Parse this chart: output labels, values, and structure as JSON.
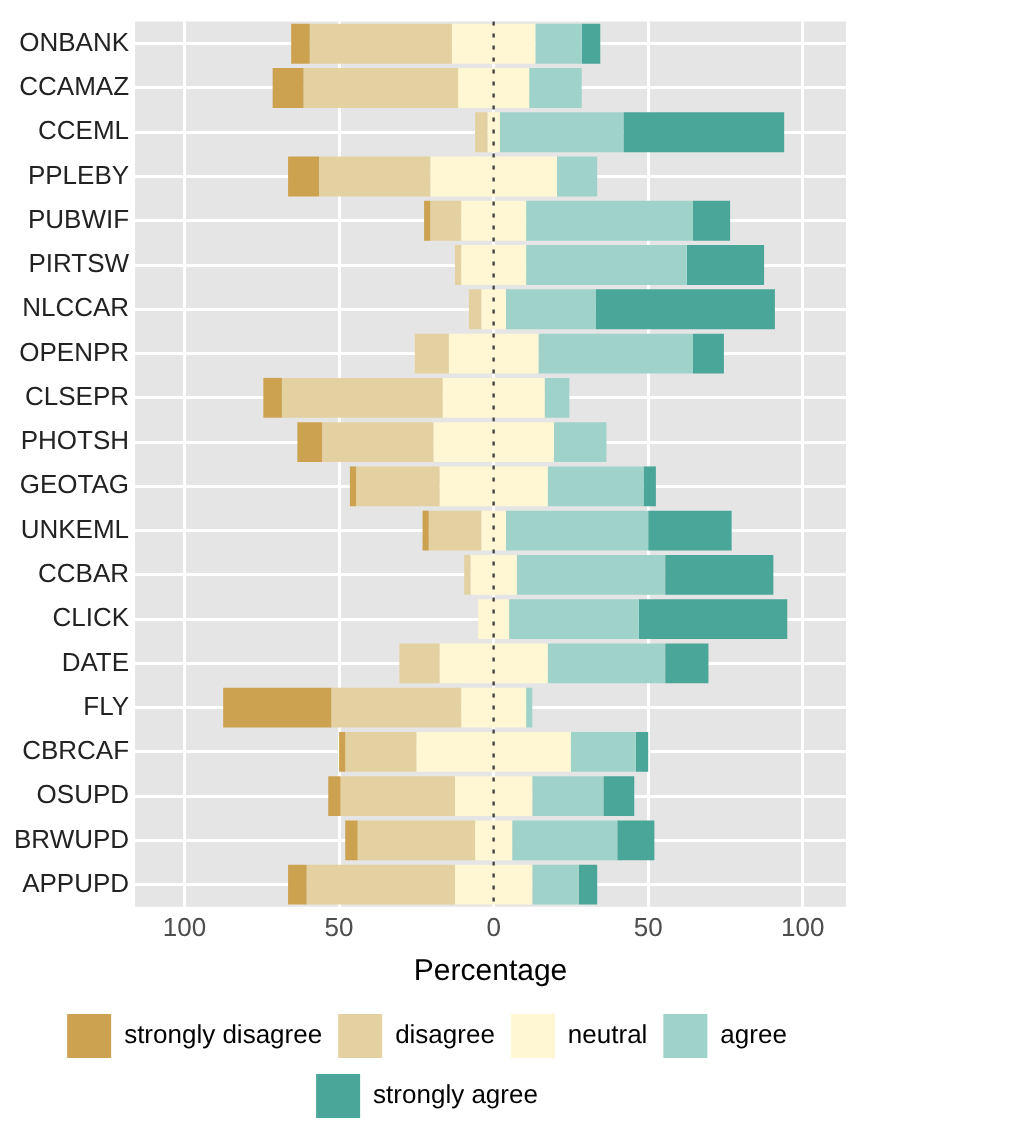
{
  "chart_data": {
    "type": "bar",
    "orientation": "horizontal",
    "xlabel": "Percentage",
    "categories": [
      "ONBANK",
      "CCAMAZ",
      "CCEML",
      "PPLEBY",
      "PUBWIF",
      "PIRTSW",
      "NLCCAR",
      "OPENPR",
      "CLSEPR",
      "PHOTSH",
      "GEOTAG",
      "UNKEML",
      "CCBAR",
      "CLICK",
      "DATE",
      "FLY",
      "CBRCAF",
      "OSUPD",
      "BRWUPD",
      "APPUPD"
    ],
    "series": [
      {
        "name": "strongly disagree",
        "color": "#cca250",
        "values": [
          6,
          10,
          null,
          10,
          2,
          null,
          null,
          null,
          6,
          8,
          2,
          2,
          null,
          null,
          null,
          35,
          2,
          4,
          4,
          6
        ],
        "base": [
          -65.5,
          -71.5,
          null,
          -66.5,
          -22.5,
          null,
          null,
          null,
          -74.5,
          -63.5,
          -46.5,
          -23,
          null,
          null,
          null,
          -87.5,
          -50,
          -53.5,
          -48,
          -66.5
        ]
      },
      {
        "name": "disagree",
        "color": "#e4d1a1",
        "values": [
          46,
          50,
          4,
          36,
          10,
          2,
          4,
          11,
          52,
          36,
          27,
          17,
          2,
          null,
          13,
          42,
          23,
          37,
          38,
          48
        ],
        "base": [
          -59.5,
          -61.5,
          -6,
          -56.5,
          -20.5,
          -12.5,
          -8,
          -25.5,
          -68.5,
          -55.5,
          -44.5,
          -21,
          -9.5,
          null,
          -30.5,
          -52.5,
          -48,
          -49.5,
          -44,
          -60.5
        ]
      },
      {
        "name": "neutral",
        "color": "#fff6d3",
        "values": [
          27,
          23,
          4,
          41,
          21,
          21,
          8,
          29,
          33,
          39,
          35,
          8,
          15,
          10,
          35,
          21,
          50,
          25,
          12,
          25
        ],
        "base": [
          -13.5,
          -11.5,
          -2,
          -20.5,
          -10.5,
          -10.5,
          -4,
          -14.5,
          -16.5,
          -19.5,
          -17.5,
          -4,
          -7.5,
          -5,
          -17.5,
          -10.5,
          -25,
          -12.5,
          -6,
          -12.5
        ]
      },
      {
        "name": "agree",
        "color": "#9fd3c9",
        "values": [
          15,
          17,
          40,
          13,
          54,
          52,
          29,
          50,
          8,
          17,
          31,
          46,
          48,
          42,
          38,
          2,
          21,
          23,
          34,
          15
        ],
        "base": [
          13.5,
          11.5,
          2,
          20.5,
          10.5,
          10.5,
          4,
          14.5,
          16.5,
          19.5,
          17.5,
          4,
          7.5,
          5,
          17.5,
          10.5,
          25,
          12.5,
          6,
          12.5
        ]
      },
      {
        "name": "strongly agree",
        "color": "#4aa698",
        "values": [
          6,
          null,
          52,
          null,
          12,
          25,
          58,
          10,
          null,
          null,
          4,
          27,
          35,
          48,
          14,
          null,
          4,
          10,
          12,
          6
        ],
        "base": [
          28.5,
          null,
          42,
          null,
          64.5,
          62.5,
          33,
          64.5,
          null,
          null,
          48.5,
          50,
          55.5,
          47,
          55.5,
          null,
          46,
          35.5,
          40,
          27.5
        ]
      }
    ],
    "xlim": [
      -116,
      114
    ],
    "xticks": [
      {
        "value": -100,
        "label": "100"
      },
      {
        "value": -50,
        "label": "50"
      },
      0,
      50,
      100
    ],
    "ref_lines": [
      {
        "axis": "x",
        "value": 0,
        "color": "#444444",
        "line_style": "dotted"
      }
    ],
    "grid": true,
    "legend": "bottom"
  }
}
